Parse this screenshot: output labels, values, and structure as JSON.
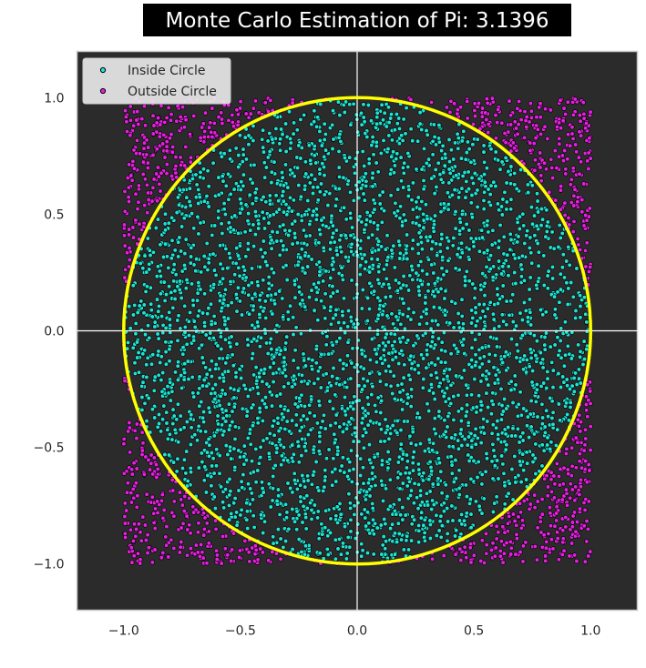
{
  "chart_data": {
    "type": "scatter",
    "title": "Monte Carlo Estimation of Pi: 3.1396",
    "xlabel": "",
    "ylabel": "",
    "xlim": [
      -1.2,
      1.2
    ],
    "ylim": [
      -1.2,
      1.2
    ],
    "x_ticks": [
      -1.0,
      -0.5,
      0.0,
      0.5,
      1.0
    ],
    "y_ticks": [
      -1.0,
      -0.5,
      0.0,
      0.5,
      1.0
    ],
    "x_tick_labels": [
      "−1.0",
      "−0.5",
      "0.0",
      "0.5",
      "1.0"
    ],
    "y_tick_labels": [
      "−1.0",
      "−0.5",
      "0.0",
      "0.5",
      "1.0"
    ],
    "grid": false,
    "axis_lines": {
      "x": 0,
      "y": 0,
      "color": "#ffffff"
    },
    "legend_position": "top-left",
    "background_color": "#2b2b2b",
    "sampling_square": [
      -1.0,
      1.0
    ],
    "estimate": 3.1396,
    "series": [
      {
        "name": "Inside Circle",
        "color": "#1fe3d3",
        "edge_color": "#000000",
        "region": "x^2 + y^2 <= 1"
      },
      {
        "name": "Outside Circle",
        "color": "#e61fe0",
        "edge_color": "#000000",
        "region": "x^2 + y^2 > 1"
      }
    ],
    "circle": {
      "center": [
        0,
        0
      ],
      "radius": 1.0,
      "color": "#ffff00"
    }
  }
}
